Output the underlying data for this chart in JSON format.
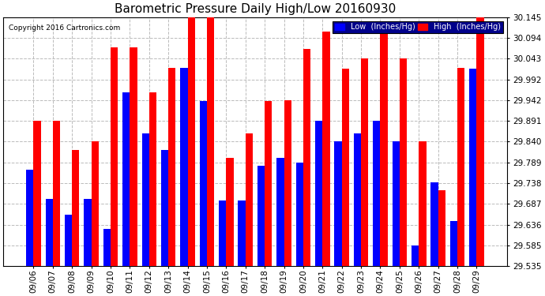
{
  "title": "Barometric Pressure Daily High/Low 20160930",
  "copyright": "Copyright 2016 Cartronics.com",
  "dates": [
    "09/06",
    "09/07",
    "09/08",
    "09/09",
    "09/10",
    "09/11",
    "09/12",
    "09/13",
    "09/14",
    "09/15",
    "09/16",
    "09/17",
    "09/18",
    "09/19",
    "09/20",
    "09/21",
    "09/22",
    "09/23",
    "09/24",
    "09/25",
    "09/26",
    "09/27",
    "09/28",
    "09/29"
  ],
  "high": [
    29.891,
    29.891,
    29.82,
    29.84,
    30.07,
    30.07,
    29.96,
    30.02,
    30.145,
    30.145,
    29.8,
    29.86,
    29.94,
    29.942,
    30.067,
    30.11,
    30.018,
    30.043,
    30.11,
    30.043,
    29.84,
    29.72,
    30.02,
    30.145
  ],
  "low": [
    29.77,
    29.7,
    29.66,
    29.7,
    29.625,
    29.96,
    29.86,
    29.82,
    30.02,
    29.94,
    29.695,
    29.695,
    29.78,
    29.8,
    29.789,
    29.891,
    29.84,
    29.86,
    29.891,
    29.84,
    29.585,
    29.74,
    29.645,
    30.018
  ],
  "ylim_min": 29.535,
  "ylim_max": 30.145,
  "yticks": [
    29.535,
    29.585,
    29.636,
    29.687,
    29.738,
    29.789,
    29.84,
    29.891,
    29.942,
    29.992,
    30.043,
    30.094,
    30.145
  ],
  "bar_width": 0.38,
  "low_color": "#0000ff",
  "high_color": "#ff0000",
  "bg_color": "#ffffff",
  "grid_color": "#bbbbbb",
  "title_fontsize": 11,
  "tick_fontsize": 7.5,
  "legend_low_label": "Low  (Inches/Hg)",
  "legend_high_label": "High  (Inches/Hg)",
  "legend_bg": "#00008b"
}
